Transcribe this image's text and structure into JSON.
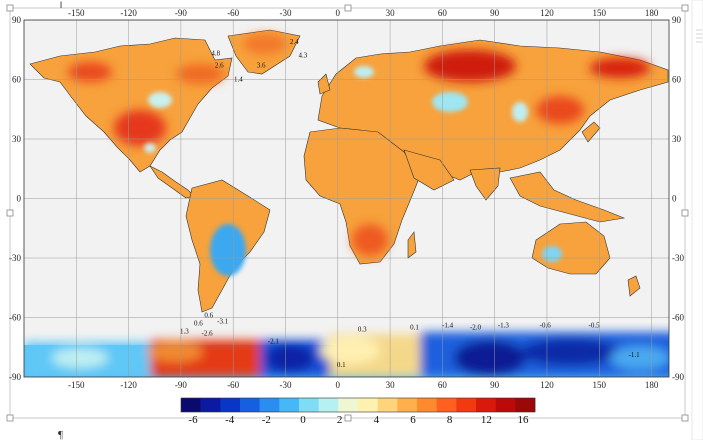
{
  "map": {
    "lon_ticks": [
      "-150",
      "-120",
      "-90",
      "-60",
      "-30",
      "0",
      "30",
      "60",
      "90",
      "120",
      "150",
      "180"
    ],
    "lat_ticks": [
      "90",
      "60",
      "30",
      "0",
      "-30",
      "-60",
      "-90"
    ],
    "lon_values": [
      -150,
      -120,
      -90,
      -60,
      -30,
      0,
      30,
      60,
      90,
      120,
      150,
      180
    ],
    "lat_values": [
      90,
      60,
      30,
      0,
      -30,
      -60,
      -90
    ],
    "lon_range": [
      -180,
      190
    ],
    "lat_range": [
      -90,
      90
    ],
    "background_color": "#f2f2f2",
    "grid_color": "#9a9a9a"
  },
  "colorbar": {
    "labels": [
      "-6",
      "-4",
      "-2",
      "0",
      "2",
      "4",
      "6",
      "8",
      "12",
      "16"
    ],
    "colors": [
      "#0a0a6e",
      "#0b1aa0",
      "#0a36c8",
      "#1560e0",
      "#2a8ef0",
      "#45b8f8",
      "#7fdcf5",
      "#b7f0f0",
      "#eef7d2",
      "#fff2b0",
      "#ffd47a",
      "#ffb04a",
      "#ff8a2e",
      "#ff6020",
      "#f23a10",
      "#d91a0a",
      "#bb0a0a",
      "#9a0808"
    ]
  },
  "annotations": [
    {
      "text": "2.4",
      "lon": -25,
      "lat": 78
    },
    {
      "text": "4.8",
      "lon": -70,
      "lat": 72
    },
    {
      "text": "2.6",
      "lon": -68,
      "lat": 66
    },
    {
      "text": "3.6",
      "lon": -44,
      "lat": 66
    },
    {
      "text": "4.3",
      "lon": -20,
      "lat": 71
    },
    {
      "text": "1.4",
      "lon": -57,
      "lat": 59
    },
    {
      "text": "0.6",
      "lon": -74,
      "lat": -60
    },
    {
      "text": "0.6",
      "lon": -80,
      "lat": -64
    },
    {
      "text": "-3.1",
      "lon": -66,
      "lat": -63
    },
    {
      "text": "1.3",
      "lon": -88,
      "lat": -68
    },
    {
      "text": "-2.6",
      "lon": -75,
      "lat": -69
    },
    {
      "text": "-2.1",
      "lon": -37,
      "lat": -73
    },
    {
      "text": "0.3",
      "lon": 14,
      "lat": -67
    },
    {
      "text": "0.1",
      "lon": 44,
      "lat": -66
    },
    {
      "text": "-1.4",
      "lon": 63,
      "lat": -65
    },
    {
      "text": "-2.0",
      "lon": 79,
      "lat": -66
    },
    {
      "text": "-1.3",
      "lon": 95,
      "lat": -65
    },
    {
      "text": "-0.6",
      "lon": 119,
      "lat": -65
    },
    {
      "text": "-0.5",
      "lon": 147,
      "lat": -65
    },
    {
      "text": "-1.1",
      "lon": 170,
      "lat": -80
    },
    {
      "text": "0.1",
      "lon": 2,
      "lat": -85
    }
  ],
  "document": {
    "pilcrow": "¶",
    "ruler_mark": "‖"
  }
}
